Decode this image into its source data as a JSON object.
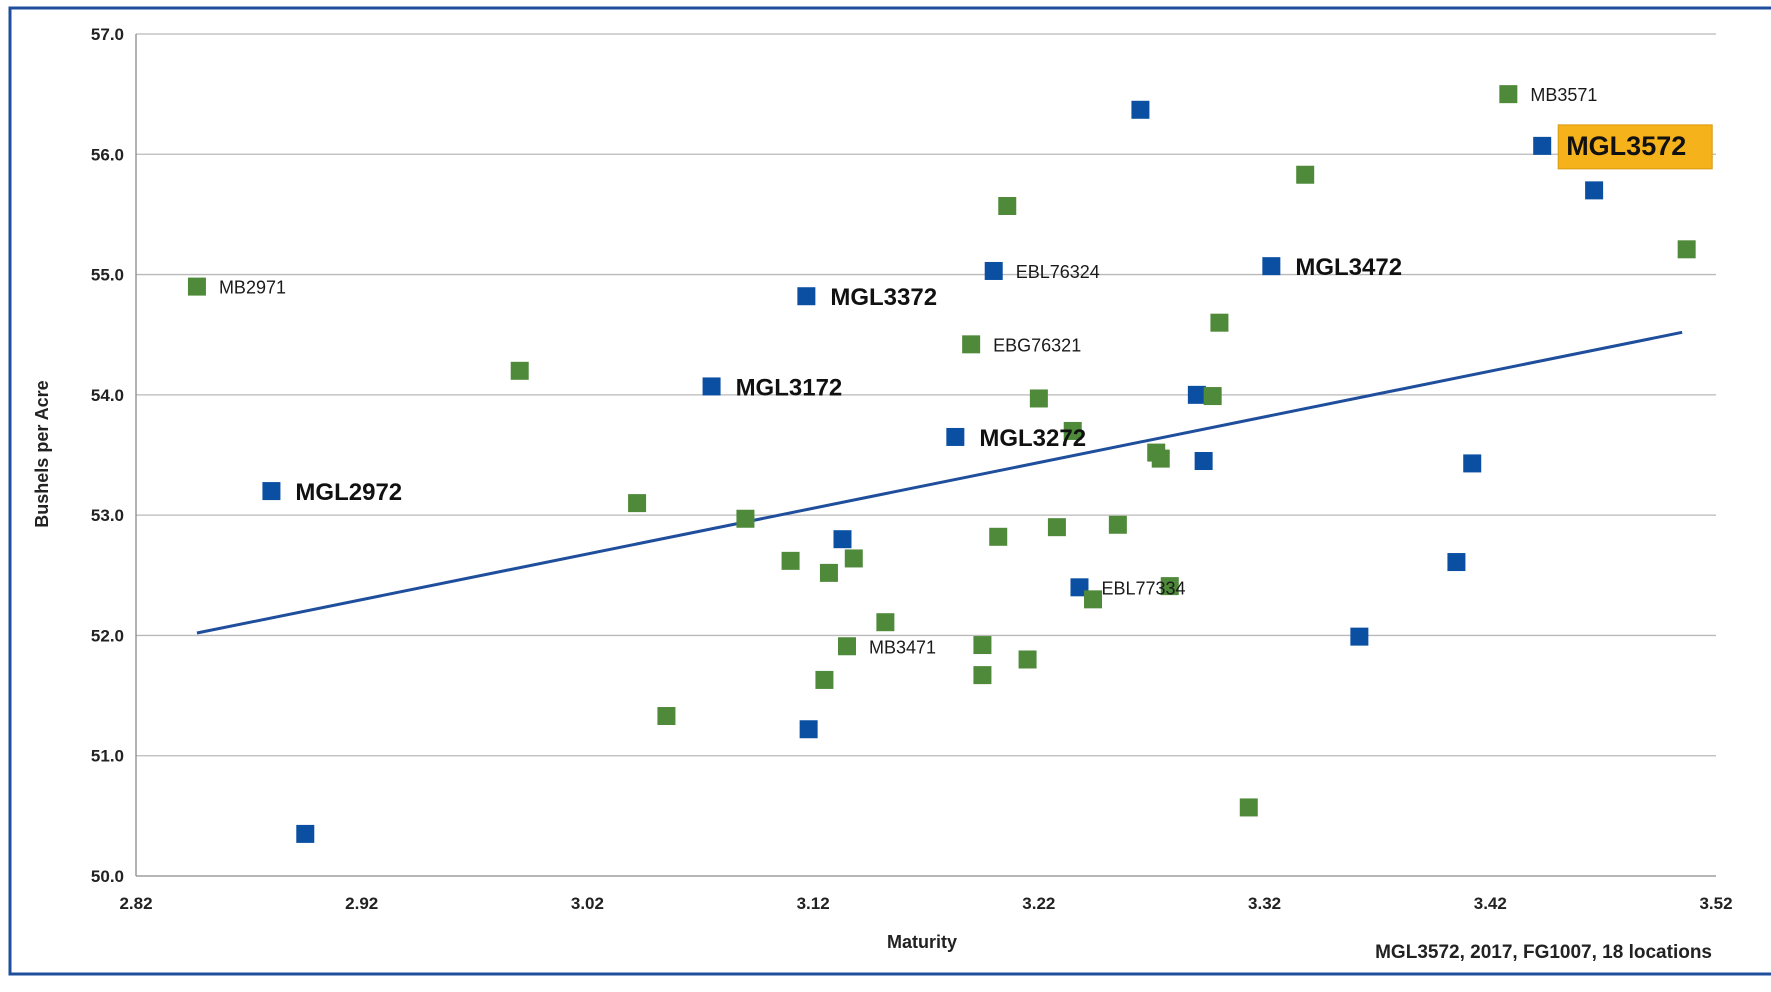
{
  "chart_data": {
    "type": "scatter",
    "xlabel": "Maturity",
    "ylabel": "Bushels per Acre",
    "note": "MGL3572, 2017, FG1007, 18 locations",
    "xlim": [
      2.82,
      3.52
    ],
    "ylim": [
      50.0,
      57.0
    ],
    "xticks": [
      "2.82",
      "2.92",
      "3.02",
      "3.12",
      "3.22",
      "3.32",
      "3.42",
      "3.52"
    ],
    "yticks": [
      "50.0",
      "51.0",
      "52.0",
      "53.0",
      "54.0",
      "55.0",
      "56.0",
      "57.0"
    ],
    "grid": true,
    "colors": {
      "blue": "#0b4fa3",
      "green": "#4f8a3a",
      "trend": "#1f4e9c",
      "highlight": "#f5b21b",
      "frame": "#1f4e9c"
    },
    "series": [
      {
        "color_key": "blue",
        "points": [
          {
            "x": 2.88,
            "y": 53.2,
            "label": "MGL2972",
            "bold": true
          },
          {
            "x": 2.895,
            "y": 50.35
          },
          {
            "x": 3.075,
            "y": 54.07,
            "label": "MGL3172",
            "bold": true
          },
          {
            "x": 3.117,
            "y": 54.82,
            "label": "MGL3372",
            "bold": true
          },
          {
            "x": 3.118,
            "y": 51.22
          },
          {
            "x": 3.133,
            "y": 52.8
          },
          {
            "x": 3.183,
            "y": 53.65,
            "label": "MGL3272",
            "bold": true
          },
          {
            "x": 3.2,
            "y": 55.03,
            "label": "EBL76324"
          },
          {
            "x": 3.238,
            "y": 52.4,
            "label": "EBL77334"
          },
          {
            "x": 3.265,
            "y": 56.37
          },
          {
            "x": 3.29,
            "y": 54.0
          },
          {
            "x": 3.293,
            "y": 53.45
          },
          {
            "x": 3.323,
            "y": 55.07,
            "label": "MGL3472",
            "bold": true
          },
          {
            "x": 3.362,
            "y": 51.99
          },
          {
            "x": 3.405,
            "y": 52.61
          },
          {
            "x": 3.412,
            "y": 53.43
          },
          {
            "x": 3.443,
            "y": 56.07,
            "label": "MGL3572",
            "bold": true,
            "highlight": true
          },
          {
            "x": 3.466,
            "y": 55.7
          }
        ]
      },
      {
        "color_key": "green",
        "points": [
          {
            "x": 2.847,
            "y": 54.9,
            "label": "MB2971"
          },
          {
            "x": 2.99,
            "y": 54.2
          },
          {
            "x": 3.042,
            "y": 53.1
          },
          {
            "x": 3.055,
            "y": 51.33
          },
          {
            "x": 3.09,
            "y": 52.97
          },
          {
            "x": 3.11,
            "y": 52.62
          },
          {
            "x": 3.125,
            "y": 51.63
          },
          {
            "x": 3.127,
            "y": 52.52
          },
          {
            "x": 3.138,
            "y": 52.64
          },
          {
            "x": 3.135,
            "y": 51.91,
            "label": "MB3471"
          },
          {
            "x": 3.152,
            "y": 52.11
          },
          {
            "x": 3.19,
            "y": 54.42,
            "label": "EBG76321"
          },
          {
            "x": 3.195,
            "y": 51.67
          },
          {
            "x": 3.195,
            "y": 51.92
          },
          {
            "x": 3.202,
            "y": 52.82
          },
          {
            "x": 3.206,
            "y": 55.57
          },
          {
            "x": 3.215,
            "y": 51.8
          },
          {
            "x": 3.22,
            "y": 53.97
          },
          {
            "x": 3.228,
            "y": 52.9
          },
          {
            "x": 3.235,
            "y": 53.7
          },
          {
            "x": 3.244,
            "y": 52.3
          },
          {
            "x": 3.255,
            "y": 52.92
          },
          {
            "x": 3.272,
            "y": 53.52
          },
          {
            "x": 3.274,
            "y": 53.47
          },
          {
            "x": 3.278,
            "y": 52.41
          },
          {
            "x": 3.297,
            "y": 53.99
          },
          {
            "x": 3.3,
            "y": 54.6
          },
          {
            "x": 3.313,
            "y": 50.57
          },
          {
            "x": 3.338,
            "y": 55.83
          },
          {
            "x": 3.428,
            "y": 56.5,
            "label": "MB3571"
          },
          {
            "x": 3.507,
            "y": 55.21
          }
        ]
      }
    ],
    "trendline": {
      "x": [
        2.847,
        3.505
      ],
      "y": [
        52.02,
        54.52
      ]
    }
  }
}
